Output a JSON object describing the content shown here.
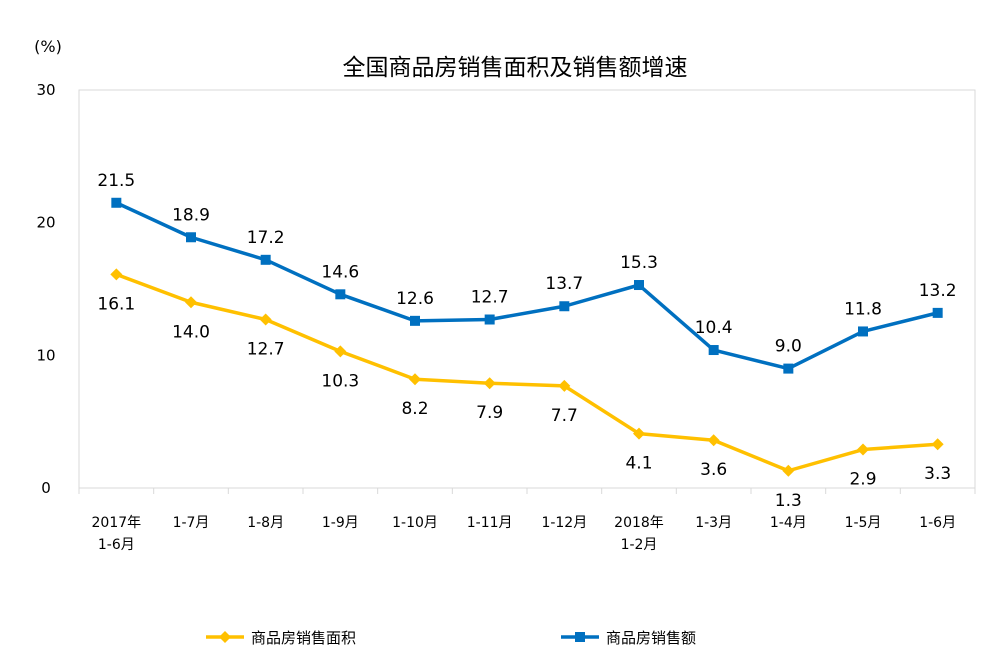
{
  "chart_data": {
    "type": "line",
    "title": "全国商品房销售面积及销售额增速",
    "ylabel": "(%)",
    "xlabel": "",
    "ylim": [
      0,
      30
    ],
    "yticks": [
      0,
      10,
      20,
      30
    ],
    "categories": [
      [
        "2017年",
        "1-6月"
      ],
      [
        "1-7月"
      ],
      [
        "1-8月"
      ],
      [
        "1-9月"
      ],
      [
        "1-10月"
      ],
      [
        "1-11月"
      ],
      [
        "1-12月"
      ],
      [
        "2018年",
        "1-2月"
      ],
      [
        "1-3月"
      ],
      [
        "1-4月"
      ],
      [
        "1-5月"
      ],
      [
        "1-6月"
      ]
    ],
    "series": [
      {
        "name": "商品房销售面积",
        "color": "#FFC000",
        "marker": "diamond",
        "label_position": "below",
        "values": [
          16.1,
          14.0,
          12.7,
          10.3,
          8.2,
          7.9,
          7.7,
          4.1,
          3.6,
          1.3,
          2.9,
          3.3
        ],
        "labels": [
          "16.1",
          "14.0",
          "12.7",
          "10.3",
          "8.2",
          "7.9",
          "7.7",
          "4.1",
          "3.6",
          "1.3",
          "2.9",
          "3.3"
        ]
      },
      {
        "name": "商品房销售额",
        "color": "#0070C0",
        "marker": "square",
        "label_position": "above",
        "values": [
          21.5,
          18.9,
          17.2,
          14.6,
          12.6,
          12.7,
          13.7,
          15.3,
          10.4,
          9.0,
          11.8,
          13.2
        ],
        "labels": [
          "21.5",
          "18.9",
          "17.2",
          "14.6",
          "12.6",
          "12.7",
          "13.7",
          "15.3",
          "10.4",
          "9.0",
          "11.8",
          "13.2"
        ]
      }
    ],
    "grid": false,
    "legend": "bottom"
  }
}
